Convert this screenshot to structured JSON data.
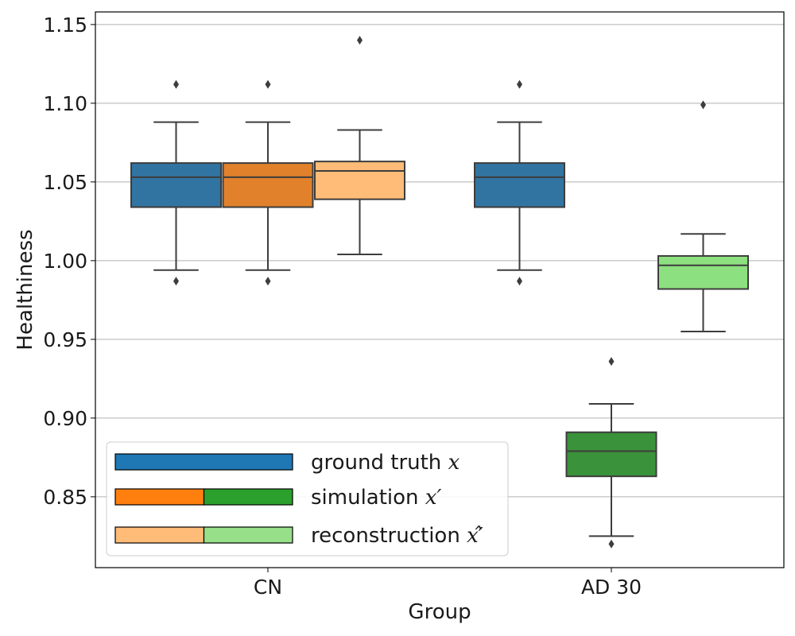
{
  "chart_data": {
    "type": "box",
    "xlabel": "Group",
    "ylabel": "Healthiness",
    "ylim": [
      0.805,
      1.158
    ],
    "yticks": [
      0.85,
      0.9,
      0.95,
      1.0,
      1.05,
      1.1,
      1.15
    ],
    "ytick_labels": [
      "0.85",
      "0.90",
      "0.95",
      "1.00",
      "1.05",
      "1.10",
      "1.15"
    ],
    "grid": "horizontal",
    "categories": [
      "CN",
      "AD 30"
    ],
    "series_names": [
      "ground truth",
      "simulation",
      "reconstruction"
    ],
    "boxes": [
      {
        "group": "CN",
        "series": "ground truth",
        "color": "#3274a1",
        "whisker_low": 0.994,
        "q1": 1.034,
        "median": 1.053,
        "q3": 1.062,
        "whisker_high": 1.088,
        "outliers": [
          0.987,
          1.112
        ]
      },
      {
        "group": "CN",
        "series": "simulation",
        "color": "#e1812c",
        "whisker_low": 0.994,
        "q1": 1.034,
        "median": 1.053,
        "q3": 1.062,
        "whisker_high": 1.088,
        "outliers": [
          0.987,
          1.112
        ]
      },
      {
        "group": "CN",
        "series": "reconstruction",
        "color": "#ffbc79",
        "whisker_low": 1.004,
        "q1": 1.039,
        "median": 1.057,
        "q3": 1.063,
        "whisker_high": 1.083,
        "outliers": [
          1.14
        ]
      },
      {
        "group": "AD 30",
        "series": "ground truth",
        "color": "#3274a1",
        "whisker_low": 0.994,
        "q1": 1.034,
        "median": 1.053,
        "q3": 1.062,
        "whisker_high": 1.088,
        "outliers": [
          0.987,
          1.112
        ]
      },
      {
        "group": "AD 30",
        "series": "simulation",
        "color": "#3a923a",
        "whisker_low": 0.825,
        "q1": 0.863,
        "median": 0.879,
        "q3": 0.891,
        "whisker_high": 0.909,
        "outliers": [
          0.82,
          0.936
        ]
      },
      {
        "group": "AD 30",
        "series": "reconstruction",
        "color": "#8de07f",
        "whisker_low": 0.955,
        "q1": 0.982,
        "median": 0.997,
        "q3": 1.003,
        "whisker_high": 1.017,
        "outliers": [
          1.099
        ]
      }
    ],
    "legend": {
      "position": "lower-left",
      "entries": [
        {
          "label": "ground truth",
          "symbol": "x",
          "colors": [
            "#1f77b4"
          ]
        },
        {
          "label": "simulation",
          "symbol": "x′",
          "colors": [
            "#ff7f0e",
            "#2ca02c"
          ]
        },
        {
          "label": "reconstruction",
          "symbol": "x′̂",
          "colors": [
            "#ffbb78",
            "#98df8a"
          ]
        }
      ]
    }
  }
}
